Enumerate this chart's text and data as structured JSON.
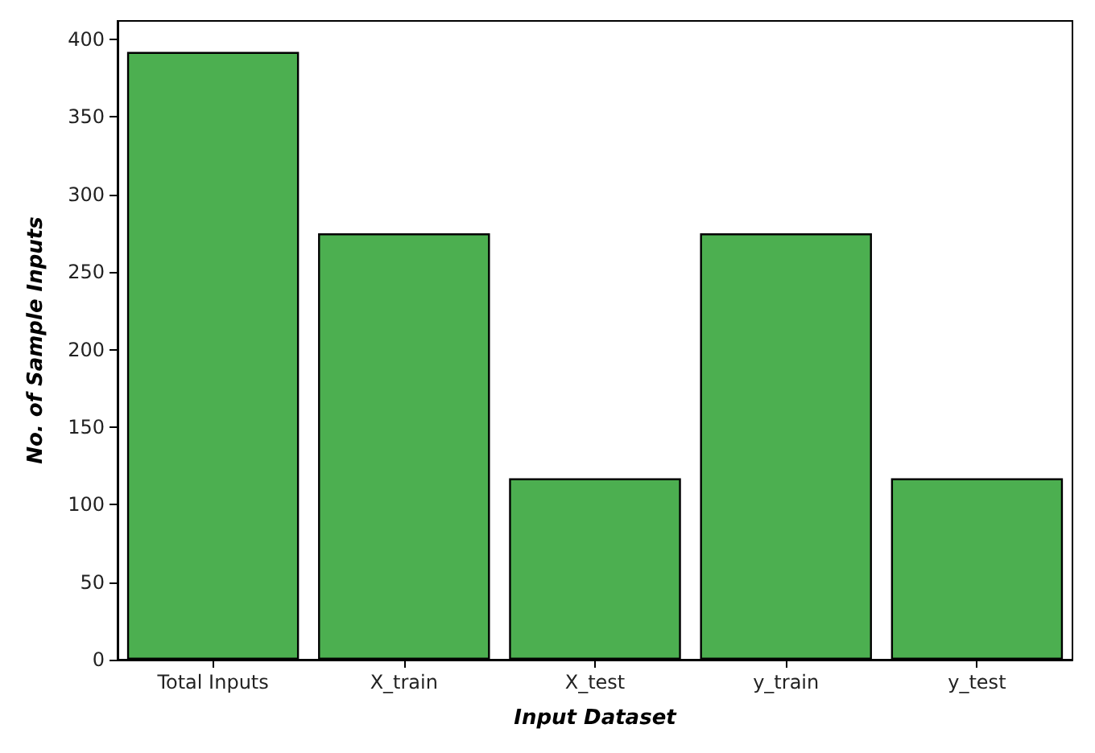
{
  "chart_data": {
    "type": "bar",
    "xlabel": "Input Dataset",
    "ylabel": "No. of Sample Inputs",
    "categories": [
      "Total Inputs",
      "X_train",
      "X_test",
      "y_train",
      "y_test"
    ],
    "values": [
      392,
      275,
      117,
      275,
      117
    ],
    "color": "#4caf50",
    "ylim": [
      0,
      412
    ],
    "yticks": [
      0,
      50,
      100,
      150,
      200,
      250,
      300,
      350,
      400
    ],
    "grid": false
  }
}
